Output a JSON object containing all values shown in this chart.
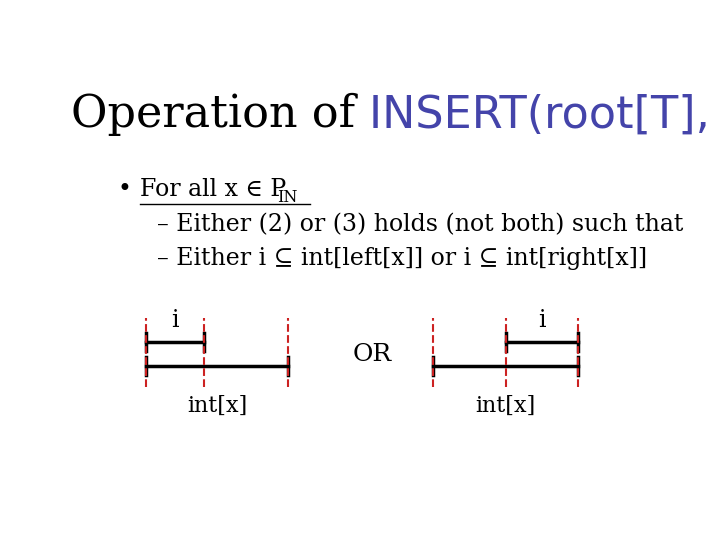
{
  "title_prefix": "Operation of ",
  "title_code": "INSERT(root[T], i)",
  "title_prefix_color": "#000000",
  "title_code_color": "#4444aa",
  "title_fontsize": 32,
  "bg_color": "#ffffff",
  "body_fontsize": 17,
  "or_text": "OR",
  "intx_label": "int[x]",
  "i_label": "i",
  "dash_color": "#cc2222",
  "bar_color": "#000000"
}
